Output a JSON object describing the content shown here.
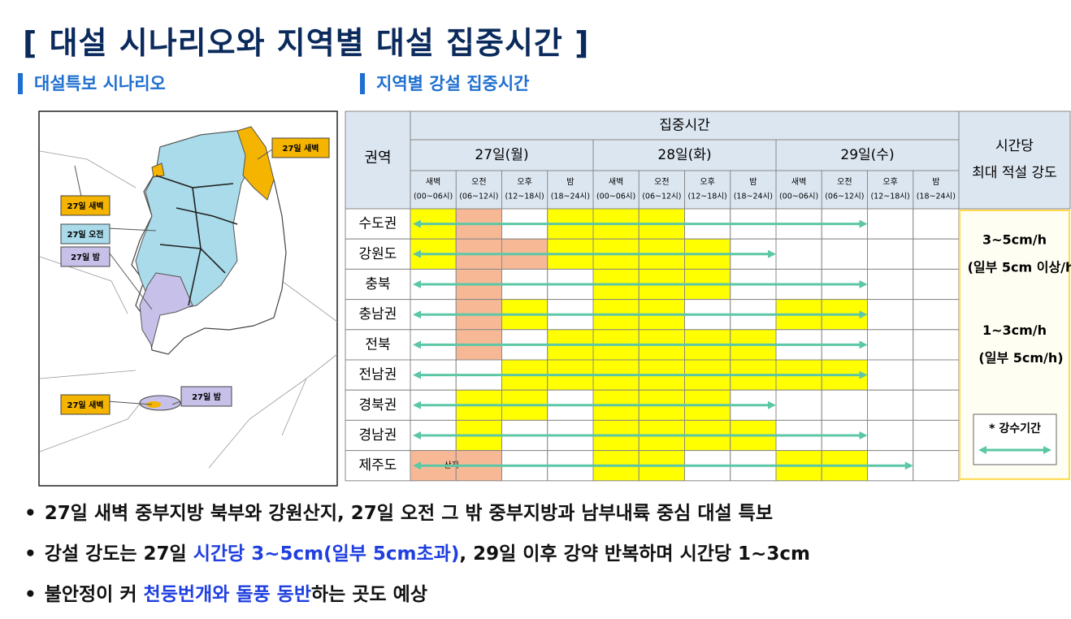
{
  "title": "[ 대설 시나리오와 지역별 대설 집중시간 ]",
  "sections": [
    "대설특보 시나리오",
    "지역별 강설 집중시간"
  ],
  "map": {
    "labels": [
      {
        "text": "27일 새벽",
        "color": "#f5b400"
      },
      {
        "text": "27일 새벽",
        "color": "#f5b400"
      },
      {
        "text": "27일 오전",
        "color": "#a9dbea"
      },
      {
        "text": "27일 밤",
        "color": "#c7c0e8"
      },
      {
        "text": "27일 새벽",
        "color": "#f5b400"
      },
      {
        "text": "27일 밤",
        "color": "#c7c0e8"
      }
    ]
  },
  "table": {
    "region_header": "권역",
    "group_header": "집중시간",
    "days": [
      "27일(월)",
      "28일(화)",
      "29일(수)"
    ],
    "periods": [
      [
        "새벽",
        "(00~06시)"
      ],
      [
        "오전",
        "(06~12시)"
      ],
      [
        "오후",
        "(12~18시)"
      ],
      [
        "밤",
        "(18~24시)"
      ],
      [
        "새벽",
        "(00~06시)"
      ],
      [
        "오전",
        "(06~12시)"
      ],
      [
        "오후",
        "(12~18시)"
      ],
      [
        "밤",
        "(18~24시)"
      ],
      [
        "새벽",
        "(00~06시)"
      ],
      [
        "오전",
        "(06~12시)"
      ],
      [
        "오후",
        "(12~18시)"
      ],
      [
        "밤",
        "(18~24시)"
      ]
    ],
    "intensity_header": [
      "시간당",
      "최대 적설 강도"
    ],
    "palette": {
      "y": "#ffff00",
      "s": "#f7b896",
      "w": "#ffffff"
    },
    "rows": [
      {
        "region": "수도권",
        "fills": [
          "y",
          "s",
          "w",
          "y",
          "y",
          "y",
          "w",
          "w",
          "w",
          "w",
          "w",
          "w"
        ],
        "span": 10
      },
      {
        "region": "강원도",
        "fills": [
          "y",
          "s",
          "s",
          "y",
          "y",
          "y",
          "y",
          "w",
          "w",
          "w",
          "w",
          "w"
        ],
        "span": 8
      },
      {
        "region": "충북",
        "fills": [
          "w",
          "s",
          "w",
          "w",
          "y",
          "y",
          "y",
          "w",
          "w",
          "w",
          "w",
          "w"
        ],
        "span": 10
      },
      {
        "region": "충남권",
        "fills": [
          "w",
          "s",
          "y",
          "w",
          "y",
          "y",
          "w",
          "w",
          "y",
          "y",
          "w",
          "w"
        ],
        "span": 10
      },
      {
        "region": "전북",
        "fills": [
          "w",
          "s",
          "w",
          "y",
          "y",
          "y",
          "y",
          "y",
          "w",
          "w",
          "w",
          "w"
        ],
        "span": 10
      },
      {
        "region": "전남권",
        "fills": [
          "w",
          "w",
          "y",
          "y",
          "y",
          "y",
          "y",
          "y",
          "y",
          "y",
          "w",
          "w"
        ],
        "span": 10
      },
      {
        "region": "경북권",
        "fills": [
          "w",
          "y",
          "y",
          "w",
          "y",
          "y",
          "y",
          "w",
          "w",
          "w",
          "w",
          "w"
        ],
        "span": 8
      },
      {
        "region": "경남권",
        "fills": [
          "w",
          "y",
          "w",
          "w",
          "y",
          "y",
          "y",
          "y",
          "w",
          "w",
          "w",
          "w"
        ],
        "span": 10
      },
      {
        "region": "제주도",
        "fills": [
          "s",
          "s",
          "w",
          "w",
          "y",
          "y",
          "w",
          "w",
          "y",
          "y",
          "w",
          "w"
        ],
        "span": 11
      }
    ],
    "note": "산지",
    "intensity": [
      [
        "3~5cm/h",
        "(일부 5cm 이상/h"
      ],
      [
        "1~3cm/h",
        "(일부 5cm/h)"
      ]
    ],
    "legend": "* 강수기간"
  },
  "bullets": [
    [
      {
        "text": "27일 새벽 중부지방 북부와 강원산지, 27일 오전 그 밖 중부지방과 남부내륙 중심  대설 특보",
        "blue": false
      }
    ],
    [
      {
        "text": "강설 강도는 27일 ",
        "blue": false
      },
      {
        "text": "시간당 3~5cm(일부 5cm초과)",
        "blue": true
      },
      {
        "text": ", 29일 이후 강약 반복하며 시간당 1~3cm",
        "blue": false
      }
    ],
    [
      {
        "text": "불안정이 커 ",
        "blue": false
      },
      {
        "text": "천둥번개와 돌풍 동반",
        "blue": true
      },
      {
        "text": "하는 곳도 예상",
        "blue": false
      }
    ]
  ]
}
